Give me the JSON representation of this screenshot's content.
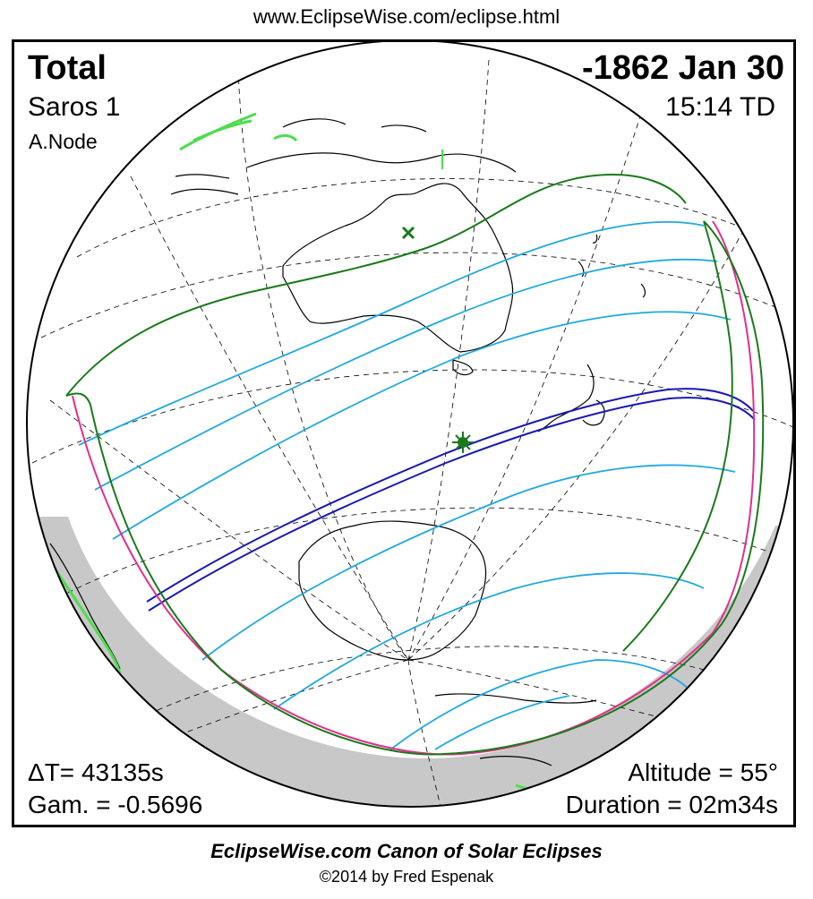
{
  "header": {
    "url": "www.EclipseWise.com/eclipse.html"
  },
  "eclipse": {
    "type": "Total",
    "date": "-1862 Jan 30",
    "saros": "Saros   1",
    "time": "15:14 TD",
    "node": "A.Node",
    "delta_t": "ΔT=  43135s",
    "gamma": "Gam. = -0.5696",
    "altitude": "Altitude = 55°",
    "duration": "Duration = 02m34s"
  },
  "footer": {
    "canon": "EclipseWise.com Canon of Solar Eclipses",
    "copyright": "©2014 by Fred Espenak"
  },
  "colors": {
    "penumbra_limit": "#1a7a1a",
    "sunrise_sunset_curve": "#e0308a",
    "magnitude_contour": "#21a8e0",
    "central_path": "#1a1ab0",
    "greatest_eclipse": "#1a7a1a",
    "night_side": "#c8c8c8",
    "coastline": "#000000",
    "grid": "#000000",
    "highlight_land": "#4ddd4d"
  },
  "icons": {
    "greatest_eclipse_marker": "star-marker-icon",
    "sub_solar_marker": "x-marker-icon"
  }
}
